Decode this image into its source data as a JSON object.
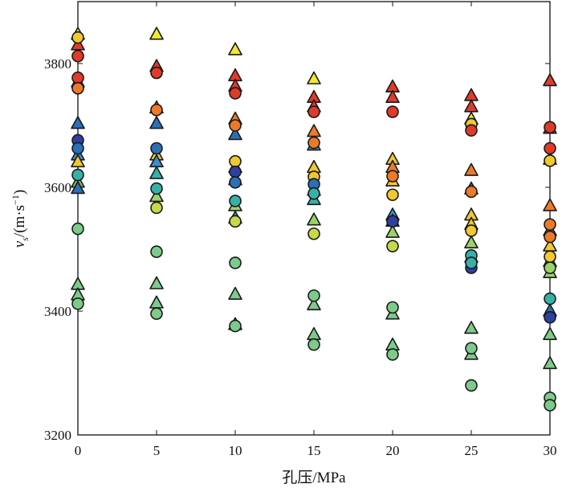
{
  "chart_data": {
    "type": "scatter",
    "title": "",
    "xlabel": "孔压/MPa",
    "ylabel": {
      "base": "v",
      "sub": "s",
      "unit_open": "/(m·s",
      "unit_sup": "−1",
      "unit_close": ")"
    },
    "xlim": [
      0,
      30
    ],
    "ylim": [
      3200,
      3900
    ],
    "xticks": [
      "0",
      "5",
      "10",
      "15",
      "20",
      "25",
      "30"
    ],
    "yticks": [
      "3200",
      "3400",
      "3600",
      "3800"
    ],
    "xtick_values": [
      0,
      5,
      10,
      15,
      20,
      25,
      30
    ],
    "ytick_values": [
      3200,
      3400,
      3600,
      3800
    ],
    "marker_edge_color": "#1a1a1a",
    "series": [
      {
        "name": "triangles",
        "marker": "triangle",
        "points": [
          {
            "x": 0,
            "y": 3847,
            "color": "#f2e830"
          },
          {
            "x": 0,
            "y": 3830,
            "color": "#e03a2a"
          },
          {
            "x": 0,
            "y": 3770,
            "color": "#ee7a28"
          },
          {
            "x": 0,
            "y": 3703,
            "color": "#2b6fb6"
          },
          {
            "x": 0,
            "y": 3652,
            "color": "#3a8fcf"
          },
          {
            "x": 0,
            "y": 3641,
            "color": "#f0c830"
          },
          {
            "x": 0,
            "y": 3608,
            "color": "#7ac45a"
          },
          {
            "x": 0,
            "y": 3598,
            "color": "#2b6fb6"
          },
          {
            "x": 0,
            "y": 3443,
            "color": "#7dca8a"
          },
          {
            "x": 0,
            "y": 3426,
            "color": "#7dca8a"
          },
          {
            "x": 5,
            "y": 3847,
            "color": "#f2e830"
          },
          {
            "x": 5,
            "y": 3795,
            "color": "#e03a2a"
          },
          {
            "x": 5,
            "y": 3728,
            "color": "#ee7a28"
          },
          {
            "x": 5,
            "y": 3703,
            "color": "#2b6fb6"
          },
          {
            "x": 5,
            "y": 3652,
            "color": "#f0c830"
          },
          {
            "x": 5,
            "y": 3641,
            "color": "#3a8fcf"
          },
          {
            "x": 5,
            "y": 3622,
            "color": "#37b0a8"
          },
          {
            "x": 5,
            "y": 3585,
            "color": "#9ad26a"
          },
          {
            "x": 5,
            "y": 3444,
            "color": "#7dca8a"
          },
          {
            "x": 5,
            "y": 3413,
            "color": "#7dca8a"
          },
          {
            "x": 10,
            "y": 3822,
            "color": "#f2e830"
          },
          {
            "x": 10,
            "y": 3780,
            "color": "#e03a2a"
          },
          {
            "x": 10,
            "y": 3763,
            "color": "#e03a2a"
          },
          {
            "x": 10,
            "y": 3710,
            "color": "#ee7a28"
          },
          {
            "x": 10,
            "y": 3685,
            "color": "#2b6fb6"
          },
          {
            "x": 10,
            "y": 3632,
            "color": "#f0c830"
          },
          {
            "x": 10,
            "y": 3612,
            "color": "#2b6fb6"
          },
          {
            "x": 10,
            "y": 3570,
            "color": "#9ad26a"
          },
          {
            "x": 10,
            "y": 3550,
            "color": "#37b0a8"
          },
          {
            "x": 10,
            "y": 3427,
            "color": "#7dca8a"
          },
          {
            "x": 10,
            "y": 3378,
            "color": "#7dca8a"
          },
          {
            "x": 15,
            "y": 3775,
            "color": "#f2e830"
          },
          {
            "x": 15,
            "y": 3745,
            "color": "#e03a2a"
          },
          {
            "x": 15,
            "y": 3730,
            "color": "#e03a2a"
          },
          {
            "x": 15,
            "y": 3690,
            "color": "#ee7a28"
          },
          {
            "x": 15,
            "y": 3668,
            "color": "#3a8fcf"
          },
          {
            "x": 15,
            "y": 3632,
            "color": "#f0c830"
          },
          {
            "x": 15,
            "y": 3595,
            "color": "#2b6fb6"
          },
          {
            "x": 15,
            "y": 3580,
            "color": "#37b0a8"
          },
          {
            "x": 15,
            "y": 3547,
            "color": "#9ad26a"
          },
          {
            "x": 15,
            "y": 3410,
            "color": "#7dca8a"
          },
          {
            "x": 15,
            "y": 3362,
            "color": "#7dca8a"
          },
          {
            "x": 20,
            "y": 3762,
            "color": "#e03a2a"
          },
          {
            "x": 20,
            "y": 3745,
            "color": "#e03a2a"
          },
          {
            "x": 20,
            "y": 3645,
            "color": "#f0c830"
          },
          {
            "x": 20,
            "y": 3632,
            "color": "#ee7a28"
          },
          {
            "x": 20,
            "y": 3610,
            "color": "#f0c830"
          },
          {
            "x": 20,
            "y": 3555,
            "color": "#3a8fcf"
          },
          {
            "x": 20,
            "y": 3545,
            "color": "#2b6fb6"
          },
          {
            "x": 20,
            "y": 3527,
            "color": "#9ad26a"
          },
          {
            "x": 20,
            "y": 3395,
            "color": "#7dca8a"
          },
          {
            "x": 20,
            "y": 3345,
            "color": "#7dca8a"
          },
          {
            "x": 25,
            "y": 3748,
            "color": "#e03a2a"
          },
          {
            "x": 25,
            "y": 3730,
            "color": "#e03a2a"
          },
          {
            "x": 25,
            "y": 3710,
            "color": "#f2e830"
          },
          {
            "x": 25,
            "y": 3627,
            "color": "#ee7a28"
          },
          {
            "x": 25,
            "y": 3597,
            "color": "#2b6fb6"
          },
          {
            "x": 25,
            "y": 3555,
            "color": "#f0c830"
          },
          {
            "x": 25,
            "y": 3540,
            "color": "#f0c830"
          },
          {
            "x": 25,
            "y": 3510,
            "color": "#9ad26a"
          },
          {
            "x": 25,
            "y": 3487,
            "color": "#37b0a8"
          },
          {
            "x": 25,
            "y": 3372,
            "color": "#7dca8a"
          },
          {
            "x": 25,
            "y": 3330,
            "color": "#7dca8a"
          },
          {
            "x": 30,
            "y": 3772,
            "color": "#e03a2a"
          },
          {
            "x": 30,
            "y": 3695,
            "color": "#e03a2a"
          },
          {
            "x": 30,
            "y": 3645,
            "color": "#f2e830"
          },
          {
            "x": 30,
            "y": 3570,
            "color": "#ee7a28"
          },
          {
            "x": 30,
            "y": 3530,
            "color": "#3a8fcf"
          },
          {
            "x": 30,
            "y": 3505,
            "color": "#f0c830"
          },
          {
            "x": 30,
            "y": 3480,
            "color": "#2b6fb6"
          },
          {
            "x": 30,
            "y": 3462,
            "color": "#9ad26a"
          },
          {
            "x": 30,
            "y": 3400,
            "color": "#2b6fb6"
          },
          {
            "x": 30,
            "y": 3362,
            "color": "#7dca8a"
          },
          {
            "x": 30,
            "y": 3315,
            "color": "#7dca8a"
          }
        ]
      },
      {
        "name": "circles",
        "marker": "circle",
        "points": [
          {
            "x": 0,
            "y": 3842,
            "color": "#f0c830"
          },
          {
            "x": 0,
            "y": 3812,
            "color": "#e03a2a"
          },
          {
            "x": 0,
            "y": 3777,
            "color": "#e03a2a"
          },
          {
            "x": 0,
            "y": 3760,
            "color": "#ee7a28"
          },
          {
            "x": 0,
            "y": 3676,
            "color": "#2f3fa0"
          },
          {
            "x": 0,
            "y": 3663,
            "color": "#2b6fb6"
          },
          {
            "x": 0,
            "y": 3620,
            "color": "#37b0a8"
          },
          {
            "x": 0,
            "y": 3533,
            "color": "#7dca8a"
          },
          {
            "x": 0,
            "y": 3412,
            "color": "#7dca8a"
          },
          {
            "x": 5,
            "y": 3785,
            "color": "#e03a2a"
          },
          {
            "x": 5,
            "y": 3725,
            "color": "#ee7a28"
          },
          {
            "x": 5,
            "y": 3663,
            "color": "#2b6fb6"
          },
          {
            "x": 5,
            "y": 3598,
            "color": "#37b0a8"
          },
          {
            "x": 5,
            "y": 3567,
            "color": "#c8d848"
          },
          {
            "x": 5,
            "y": 3496,
            "color": "#7dca8a"
          },
          {
            "x": 5,
            "y": 3396,
            "color": "#7dca8a"
          },
          {
            "x": 10,
            "y": 3752,
            "color": "#e03a2a"
          },
          {
            "x": 10,
            "y": 3700,
            "color": "#ee7a28"
          },
          {
            "x": 10,
            "y": 3642,
            "color": "#f0c830"
          },
          {
            "x": 10,
            "y": 3625,
            "color": "#2f3fa0"
          },
          {
            "x": 10,
            "y": 3608,
            "color": "#2b6fb6"
          },
          {
            "x": 10,
            "y": 3578,
            "color": "#37b0a8"
          },
          {
            "x": 10,
            "y": 3545,
            "color": "#c8d848"
          },
          {
            "x": 10,
            "y": 3478,
            "color": "#7dca8a"
          },
          {
            "x": 10,
            "y": 3376,
            "color": "#7dca8a"
          },
          {
            "x": 15,
            "y": 3722,
            "color": "#e03a2a"
          },
          {
            "x": 15,
            "y": 3672,
            "color": "#ee7a28"
          },
          {
            "x": 15,
            "y": 3617,
            "color": "#f0c830"
          },
          {
            "x": 15,
            "y": 3605,
            "color": "#2b6fb6"
          },
          {
            "x": 15,
            "y": 3590,
            "color": "#37b0a8"
          },
          {
            "x": 15,
            "y": 3525,
            "color": "#c8d848"
          },
          {
            "x": 15,
            "y": 3425,
            "color": "#7dca8a"
          },
          {
            "x": 15,
            "y": 3346,
            "color": "#7dca8a"
          },
          {
            "x": 20,
            "y": 3722,
            "color": "#e03a2a"
          },
          {
            "x": 20,
            "y": 3618,
            "color": "#ee7a28"
          },
          {
            "x": 20,
            "y": 3588,
            "color": "#f0c830"
          },
          {
            "x": 20,
            "y": 3545,
            "color": "#2f3fa0"
          },
          {
            "x": 20,
            "y": 3505,
            "color": "#c8d848"
          },
          {
            "x": 20,
            "y": 3406,
            "color": "#7dca8a"
          },
          {
            "x": 20,
            "y": 3330,
            "color": "#7dca8a"
          },
          {
            "x": 25,
            "y": 3702,
            "color": "#f0c830"
          },
          {
            "x": 25,
            "y": 3692,
            "color": "#e03a2a"
          },
          {
            "x": 25,
            "y": 3593,
            "color": "#ee7a28"
          },
          {
            "x": 25,
            "y": 3530,
            "color": "#f0c830"
          },
          {
            "x": 25,
            "y": 3490,
            "color": "#37b0a8"
          },
          {
            "x": 25,
            "y": 3470,
            "color": "#2f3fa0"
          },
          {
            "x": 25,
            "y": 3478,
            "color": "#37b0a8"
          },
          {
            "x": 25,
            "y": 3340,
            "color": "#7dca8a"
          },
          {
            "x": 25,
            "y": 3280,
            "color": "#7dca8a"
          },
          {
            "x": 30,
            "y": 3697,
            "color": "#e03a2a"
          },
          {
            "x": 30,
            "y": 3663,
            "color": "#e03a2a"
          },
          {
            "x": 30,
            "y": 3643,
            "color": "#f0c830"
          },
          {
            "x": 30,
            "y": 3540,
            "color": "#ee7a28"
          },
          {
            "x": 30,
            "y": 3520,
            "color": "#ee7a28"
          },
          {
            "x": 30,
            "y": 3488,
            "color": "#f0c830"
          },
          {
            "x": 30,
            "y": 3470,
            "color": "#9ad26a"
          },
          {
            "x": 30,
            "y": 3420,
            "color": "#37b0a8"
          },
          {
            "x": 30,
            "y": 3390,
            "color": "#2f3fa0"
          },
          {
            "x": 30,
            "y": 3260,
            "color": "#7dca8a"
          },
          {
            "x": 30,
            "y": 3248,
            "color": "#7dca8a"
          }
        ]
      }
    ]
  }
}
